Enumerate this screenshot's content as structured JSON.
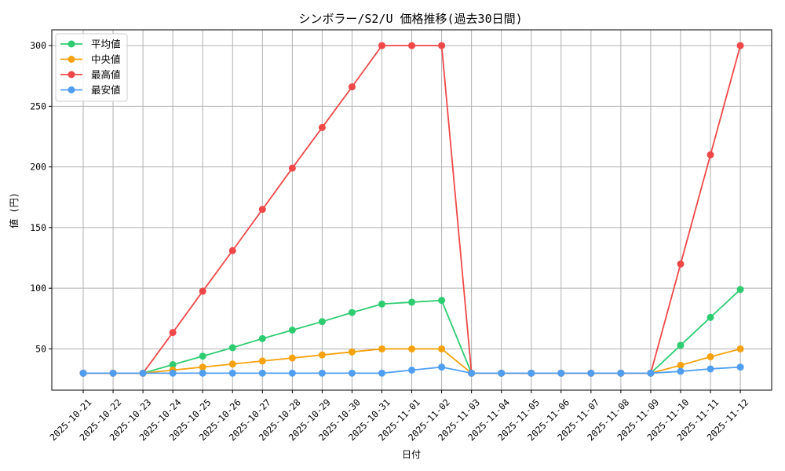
{
  "chart_data": {
    "type": "line",
    "title": "シンボラー/S2/U 価格推移(過去30日間)",
    "xlabel": "日付",
    "ylabel": "値 (円)",
    "categories": [
      "2025-10-21",
      "2025-10-22",
      "2025-10-23",
      "2025-10-24",
      "2025-10-25",
      "2025-10-26",
      "2025-10-27",
      "2025-10-28",
      "2025-10-29",
      "2025-10-30",
      "2025-10-31",
      "2025-11-01",
      "2025-11-02",
      "2025-11-03",
      "2025-11-04",
      "2025-11-05",
      "2025-11-06",
      "2025-11-07",
      "2025-11-08",
      "2025-11-09",
      "2025-11-10",
      "2025-11-11",
      "2025-11-12"
    ],
    "y_ticks": [
      50,
      100,
      150,
      200,
      250,
      300
    ],
    "ylim": [
      16,
      313
    ],
    "grid": true,
    "legend_position": "top-left",
    "series": [
      {
        "name": "平均値",
        "color": "#2ecc71",
        "values": [
          30,
          30,
          30,
          37,
          44,
          51,
          58.5,
          65.5,
          72.5,
          80,
          87,
          88.5,
          90,
          30,
          30,
          30,
          30,
          30,
          30,
          30,
          53,
          76,
          99
        ]
      },
      {
        "name": "中央値",
        "color": "#f5a20e",
        "values": [
          30,
          30,
          30,
          32.5,
          35,
          37.5,
          40,
          42.5,
          45,
          47.5,
          50,
          50,
          50,
          30,
          30,
          30,
          30,
          30,
          30,
          30,
          36.5,
          43.5,
          50
        ]
      },
      {
        "name": "最高値",
        "color": "#f04848",
        "values": [
          30,
          30,
          30,
          63.5,
          97.5,
          131,
          165,
          199,
          232.5,
          266,
          300,
          300,
          300,
          30,
          30,
          30,
          30,
          30,
          30,
          30,
          120,
          210,
          300
        ]
      },
      {
        "name": "最安値",
        "color": "#4f9ef0",
        "values": [
          30,
          30,
          30,
          30,
          30,
          30,
          30,
          30,
          30,
          30,
          30,
          32.5,
          35,
          30,
          30,
          30,
          30,
          30,
          30,
          30,
          31.5,
          33.5,
          35
        ]
      }
    ]
  }
}
